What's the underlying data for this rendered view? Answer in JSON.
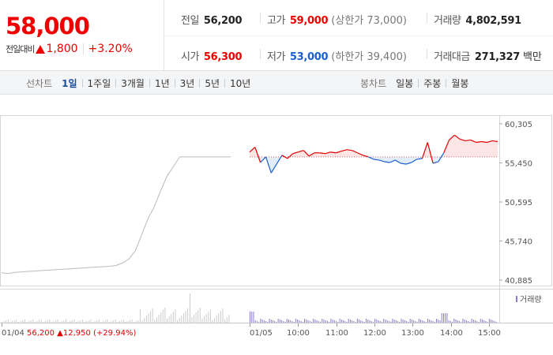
{
  "summary": {
    "current_price": "58,000",
    "change_label": "전일대비",
    "change_value": "1,800",
    "change_rate": "+3.20%",
    "prev_close_label": "전일",
    "prev_close": "56,200",
    "high_label": "고가",
    "high": "59,000",
    "upper_limit": "(상한가 73,000)",
    "volume_label": "거래량",
    "volume": "4,802,591",
    "open_label": "시가",
    "open": "56,300",
    "low_label": "저가",
    "low": "53,000",
    "lower_limit": "(하한가 39,400)",
    "trade_value_label": "거래대금",
    "trade_value": "271,327",
    "trade_value_unit": "백만"
  },
  "toolbar": {
    "line_chart_label": "선차트",
    "line_periods": [
      "1일",
      "1주일",
      "3개월",
      "1년",
      "3년",
      "5년",
      "10년"
    ],
    "active_period": "1일",
    "candle_chart_label": "봉차트",
    "candle_periods": [
      "일봉",
      "주봉",
      "월봉"
    ]
  },
  "colors": {
    "up": "#e00000",
    "down": "#1a5fcf",
    "prev_day_line": "#bbbbbb",
    "volume_today": "#8a7cc9",
    "volume_prev": "#cccccc"
  },
  "chart_data": {
    "type": "line",
    "y_ticks": [
      "60,305",
      "55,450",
      "50,595",
      "45,740",
      "40,885"
    ],
    "y_tick_values": [
      60305,
      55450,
      50595,
      45740,
      40885
    ],
    "x_ticks": [
      "01/04",
      "01/05",
      "10:00",
      "11:00",
      "12:00",
      "13:00",
      "14:00",
      "15:00"
    ],
    "reference_price": 56200,
    "prev_day": {
      "label": "01/04",
      "values": [
        41800,
        41700,
        41850,
        41900,
        41950,
        42000,
        42050,
        42100,
        42150,
        42200,
        42250,
        42300,
        42350,
        42400,
        42450,
        42500,
        42550,
        42600,
        42700,
        43000,
        43500,
        44500,
        46500,
        48500,
        50000,
        52000,
        53800,
        55000,
        56200,
        56200,
        56200,
        56200,
        56200,
        56200,
        56200,
        56200,
        56200
      ]
    },
    "today": {
      "label": "01/05",
      "values": [
        56800,
        57400,
        55500,
        56200,
        54200,
        55300,
        56400,
        56000,
        56600,
        56800,
        57000,
        56300,
        56700,
        56700,
        56600,
        56800,
        56700,
        56900,
        57100,
        57000,
        56700,
        56400,
        56200,
        55900,
        55800,
        55600,
        55500,
        55800,
        55400,
        55300,
        55500,
        55900,
        56000,
        58000,
        55400,
        55600,
        56700,
        58300,
        58900,
        58400,
        58200,
        58300,
        58000,
        58100,
        58000,
        58200,
        58100
      ]
    },
    "volume_legend": "거래량"
  },
  "bottom_info": {
    "date": "01/04",
    "close": "56,200",
    "change": "12,950",
    "rate": "(+29.94%)"
  }
}
